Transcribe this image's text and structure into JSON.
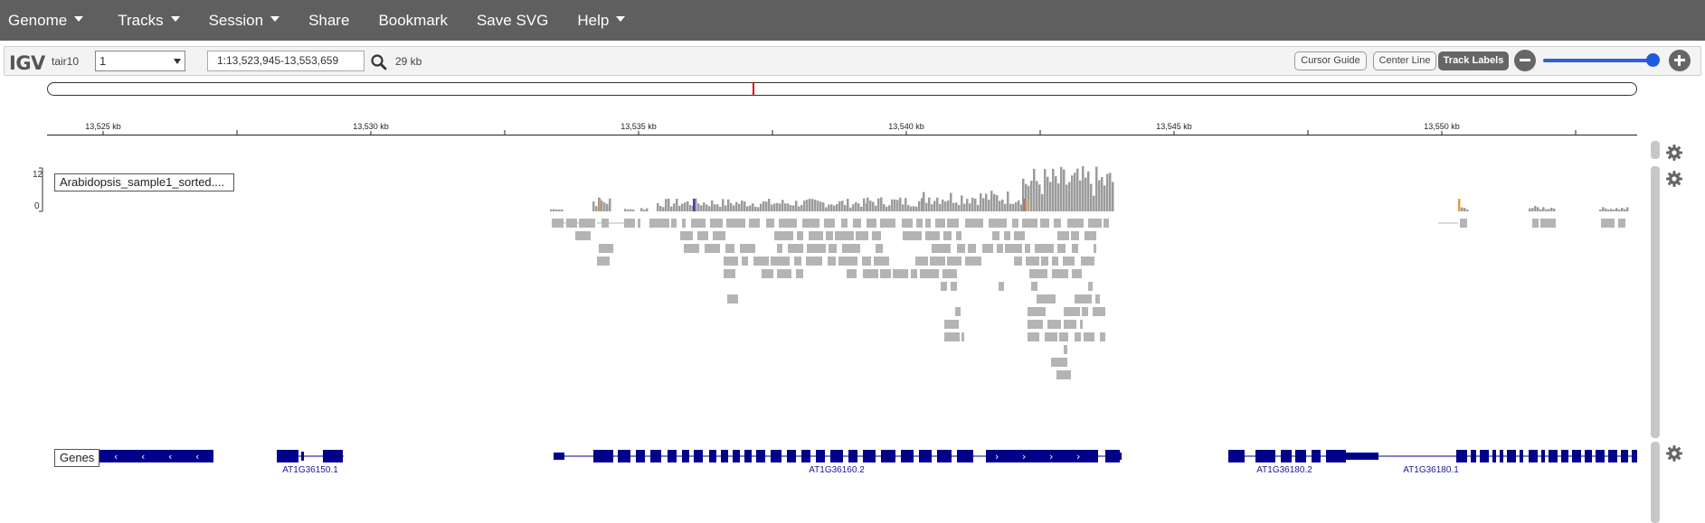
{
  "menu": {
    "items": [
      {
        "label": "Genome",
        "dropdown": true
      },
      {
        "label": "Tracks",
        "dropdown": true
      },
      {
        "label": "Session",
        "dropdown": true
      },
      {
        "label": "Share",
        "dropdown": false
      },
      {
        "label": "Bookmark",
        "dropdown": false
      },
      {
        "label": "Save SVG",
        "dropdown": false
      },
      {
        "label": "Help",
        "dropdown": true
      }
    ]
  },
  "navbar": {
    "logo": "IGV",
    "genome": "tair10",
    "chromosome": "1",
    "locus": "1:13,523,945-13,553,659",
    "window_size": "29 kb",
    "buttons": {
      "cursor_guide": "Cursor Guide",
      "center_line": "Center Line",
      "track_labels": "Track Labels"
    },
    "zoom_level": 0.95
  },
  "ruler": {
    "ticks": [
      "13,525 kb",
      "13,530 kb",
      "13,535 kb",
      "13,540 kb",
      "13,545 kb",
      "13,550 kb"
    ]
  },
  "tracks": {
    "alignment": {
      "name": "Arabidopsis_sample1_sorted....",
      "data_range_max": "12",
      "data_range_min": "0"
    },
    "genes": {
      "name": "Genes",
      "features": [
        "AT1G36150.1",
        "AT1G36160.2",
        "AT1G36180.2",
        "AT1G36180.1"
      ]
    }
  },
  "colors": {
    "menubar": "#5f5f5f",
    "coverage": "#9b9b9b",
    "read": "#b4b4b4",
    "gene": "#00008b",
    "ideogram_marker": "#e00000",
    "zoom": "#1d5be0"
  }
}
